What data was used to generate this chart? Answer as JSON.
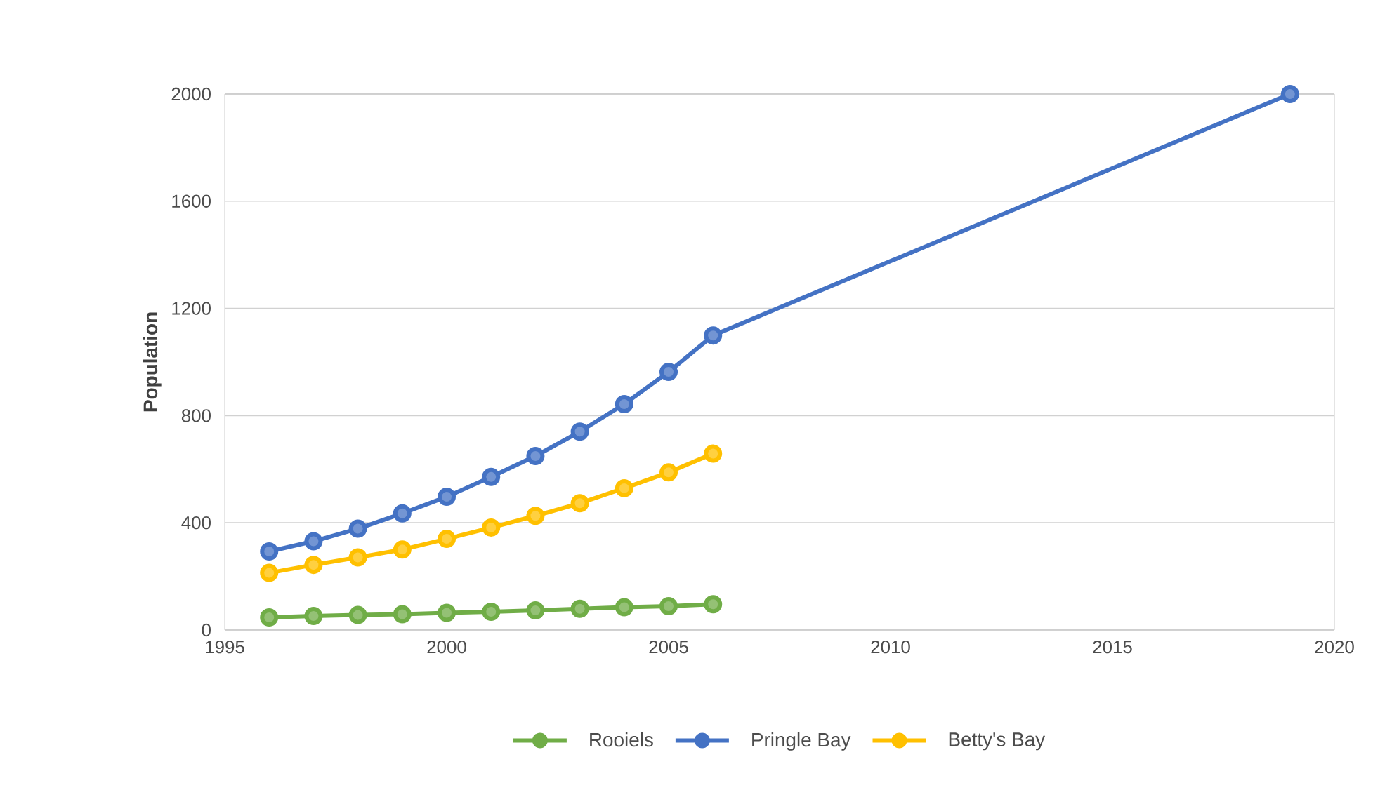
{
  "chart_data": {
    "type": "line",
    "ylabel": "Population",
    "xlim": [
      1995,
      2020
    ],
    "xticks": [
      1995,
      2000,
      2005,
      2010,
      2015,
      2020
    ],
    "ylim": [
      0,
      2000
    ],
    "yticks": [
      0,
      400,
      800,
      1200,
      1600,
      2000
    ],
    "grid": "y",
    "legend": "bottom",
    "marker": "circle",
    "line_style": "solid",
    "series": [
      {
        "name": "Rooiels",
        "color": "#70ad47",
        "x": [
          1996,
          1997,
          1998,
          1999,
          2000,
          2001,
          2002,
          2003,
          2004,
          2005,
          2006
        ],
        "values": [
          47,
          52,
          56,
          59,
          64,
          68,
          73,
          79,
          85,
          89,
          96
        ]
      },
      {
        "name": "Pringle Bay",
        "color": "#4472c4",
        "x": [
          1996,
          1997,
          1998,
          1999,
          2000,
          2001,
          2002,
          2003,
          2004,
          2005,
          2006,
          2019
        ],
        "values": [
          293,
          331,
          378,
          435,
          497,
          571,
          649,
          740,
          843,
          963,
          1099,
          2000
        ]
      },
      {
        "name": "Betty's Bay",
        "color": "#ffc000",
        "x": [
          1996,
          1997,
          1998,
          1999,
          2000,
          2001,
          2002,
          2003,
          2004,
          2005,
          2006
        ],
        "values": [
          213,
          243,
          271,
          300,
          340,
          382,
          426,
          473,
          529,
          588,
          658
        ]
      }
    ]
  }
}
